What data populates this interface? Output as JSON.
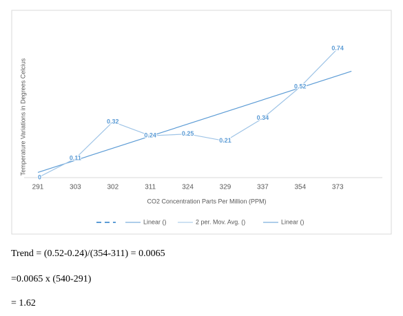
{
  "chart_data": {
    "type": "line",
    "x_label": "CO2 Concentration Parts Per Million (PPM)",
    "y_label": "Temperature Variations in Degrees Celcius",
    "categories": [
      "291",
      "303",
      "302",
      "311",
      "324",
      "329",
      "337",
      "354",
      "373"
    ],
    "series": [
      {
        "name": "2 per. Mov. Avg. ()",
        "color": "#9dc3e6",
        "values": [
          0,
          0.11,
          0.32,
          0.24,
          0.25,
          0.21,
          0.34,
          0.52,
          0.74
        ]
      }
    ],
    "trendline": {
      "name": "Linear ()",
      "color": "#5b9bd5",
      "start": 0.03,
      "end": 0.61
    },
    "legend": [
      "",
      "Linear ()",
      "2 per. Mov. Avg. ()",
      "Linear ()"
    ],
    "ylim": [
      0,
      0.9
    ]
  },
  "text_lines": [
    "Trend = (0.52-0.24)/(354-311) = 0.0065",
    "=0.0065 x (540-291)",
    "= 1.62"
  ]
}
